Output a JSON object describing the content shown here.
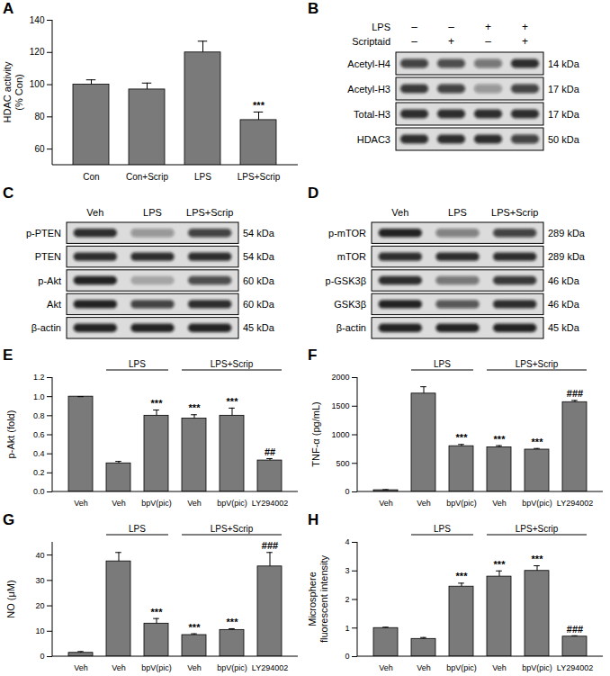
{
  "chart_data": [
    {
      "type": "bar",
      "title": "A",
      "y_label": [
        "HDAC activity",
        "(% Con)"
      ],
      "categories": [
        "Con",
        "Con+Scrip",
        "LPS",
        "LPS+Scrip"
      ],
      "values": [
        100,
        97,
        120,
        78
      ],
      "error": [
        3,
        4,
        7,
        5
      ],
      "annotations": [
        null,
        null,
        null,
        "***"
      ],
      "color": "#7a7a7a",
      "ylim": [
        50,
        140
      ],
      "yticks": [
        60,
        80,
        100,
        120,
        140
      ]
    },
    {
      "type": "bar",
      "title": "E",
      "y_label": [
        "p-Akt (fold)"
      ],
      "categories": [
        "Veh",
        "Veh",
        "bpV(pic)",
        "Veh",
        "bpV(pic)",
        "LY294002"
      ],
      "groups": [
        {
          "label": "LPS",
          "span": [
            1,
            2
          ]
        },
        {
          "label": "LPS+Scrip",
          "span": [
            3,
            5
          ]
        }
      ],
      "values": [
        1.0,
        0.3,
        0.8,
        0.77,
        0.8,
        0.33
      ],
      "error": [
        0,
        0.02,
        0.06,
        0.04,
        0.08,
        0.02
      ],
      "annotations": [
        null,
        null,
        "***",
        "***",
        "***",
        "##"
      ],
      "color": "#7a7a7a",
      "ylim": [
        0,
        1.2
      ],
      "yticks": [
        {
          "value": 0,
          "label": "0.0"
        },
        {
          "value": 0.2,
          "label": "0.2"
        },
        {
          "value": 0.4,
          "label": "0.4"
        },
        {
          "value": 0.6,
          "label": "0.6"
        },
        {
          "value": 0.8,
          "label": "0.8"
        },
        {
          "value": 1,
          "label": "1.0"
        },
        {
          "value": 1.2,
          "label": "1.2"
        }
      ]
    },
    {
      "type": "bar",
      "title": "F",
      "y_label": [
        "TNF-α (pg/mL)"
      ],
      "categories": [
        "Veh",
        "Veh",
        "bpV(pic)",
        "Veh",
        "bpV(pic)",
        "LY294002"
      ],
      "groups": [
        {
          "label": "LPS",
          "span": [
            1,
            2
          ]
        },
        {
          "label": "LPS+Scrip",
          "span": [
            3,
            5
          ]
        }
      ],
      "values": [
        30,
        1720,
        800,
        780,
        740,
        1570
      ],
      "error": [
        10,
        120,
        30,
        30,
        20,
        30
      ],
      "annotations": [
        null,
        null,
        "***",
        "***",
        "***",
        "###"
      ],
      "color": "#7a7a7a",
      "ylim": [
        0,
        2000
      ],
      "yticks": [
        0,
        500,
        1000,
        1500,
        2000
      ]
    },
    {
      "type": "bar",
      "title": "G",
      "y_label": [
        "NO (μM)"
      ],
      "categories": [
        "Veh",
        "Veh",
        "bpV(pic)",
        "Veh",
        "bpV(pic)",
        "LY294002"
      ],
      "groups": [
        {
          "label": "LPS",
          "span": [
            1,
            2
          ]
        },
        {
          "label": "LPS+Scrip",
          "span": [
            3,
            5
          ]
        }
      ],
      "values": [
        1.5,
        37.5,
        13,
        8.5,
        10.5,
        35.5
      ],
      "error": [
        0.5,
        3.5,
        2,
        0.5,
        0.5,
        5.5
      ],
      "annotations": [
        null,
        null,
        "***",
        "***",
        "***",
        "###"
      ],
      "color": "#7a7a7a",
      "ylim": [
        0,
        45
      ],
      "yticks": [
        0,
        10,
        20,
        30,
        40
      ]
    },
    {
      "type": "bar",
      "title": "H",
      "y_label": [
        "Microsphere",
        "fluorescent intensity"
      ],
      "categories": [
        "Veh",
        "Veh",
        "bpV(pic)",
        "Veh",
        "bpV(pic)",
        "LY294002"
      ],
      "groups": [
        {
          "label": "LPS",
          "span": [
            1,
            2
          ]
        },
        {
          "label": "LPS+Scrip",
          "span": [
            3,
            5
          ]
        }
      ],
      "values": [
        1.0,
        0.62,
        2.45,
        2.8,
        3.0,
        0.7
      ],
      "error": [
        0.03,
        0.05,
        0.12,
        0.2,
        0.18,
        0.03
      ],
      "annotations": [
        null,
        null,
        "***",
        "***",
        "***",
        "###"
      ],
      "color": "#7a7a7a",
      "ylim": [
        0,
        4
      ],
      "yticks": [
        0,
        1,
        2,
        3,
        4
      ]
    }
  ],
  "blots": [
    {
      "type": "western_blot",
      "title": "B",
      "conditions": [
        {
          "label": "LPS",
          "values": [
            "–",
            "–",
            "+",
            "+"
          ]
        },
        {
          "label": "Scriptaid",
          "values": [
            "–",
            "+",
            "–",
            "+"
          ]
        }
      ],
      "rows": [
        {
          "label": "Acetyl-H4",
          "size": "14 kDa",
          "intensity": [
            0.75,
            0.7,
            0.5,
            0.85
          ]
        },
        {
          "label": "Acetyl-H3",
          "size": "17 kDa",
          "intensity": [
            0.8,
            0.75,
            0.35,
            0.75
          ]
        },
        {
          "label": "Total-H3",
          "size": "17 kDa",
          "intensity": [
            0.85,
            0.85,
            0.85,
            0.85
          ]
        },
        {
          "label": "HDAC3",
          "size": "50 kDa",
          "intensity": [
            0.85,
            0.85,
            0.85,
            0.75
          ]
        }
      ]
    },
    {
      "type": "western_blot",
      "title": "C",
      "columns": [
        "Veh",
        "LPS",
        "LPS+Scrip"
      ],
      "rows": [
        {
          "label": "p-PTEN",
          "size": "54 kDa",
          "intensity": [
            0.85,
            0.35,
            0.75
          ]
        },
        {
          "label": "PTEN",
          "size": "54 kDa",
          "intensity": [
            0.85,
            0.85,
            0.85
          ]
        },
        {
          "label": "p-Akt",
          "size": "60 kDa",
          "intensity": [
            0.9,
            0.25,
            0.7
          ]
        },
        {
          "label": "Akt",
          "size": "60 kDa",
          "intensity": [
            0.9,
            0.75,
            0.85
          ]
        },
        {
          "label": "β-actin",
          "size": "45 kDa",
          "intensity": [
            0.9,
            0.9,
            0.9
          ]
        }
      ]
    },
    {
      "type": "western_blot",
      "title": "D",
      "columns": [
        "Veh",
        "LPS",
        "LPS+Scrip"
      ],
      "rows": [
        {
          "label": "p-mTOR",
          "size": "289 kDa",
          "intensity": [
            0.9,
            0.45,
            0.75
          ]
        },
        {
          "label": "mTOR",
          "size": "289 kDa",
          "intensity": [
            0.85,
            0.85,
            0.85
          ]
        },
        {
          "label": "p-GSK3β",
          "size": "46 kDa",
          "intensity": [
            0.85,
            0.5,
            0.8
          ]
        },
        {
          "label": "GSK3β",
          "size": "46 kDa",
          "intensity": [
            0.9,
            0.65,
            0.85
          ]
        },
        {
          "label": "β-actin",
          "size": "45 kDa",
          "intensity": [
            0.9,
            0.9,
            0.9
          ]
        }
      ]
    }
  ]
}
